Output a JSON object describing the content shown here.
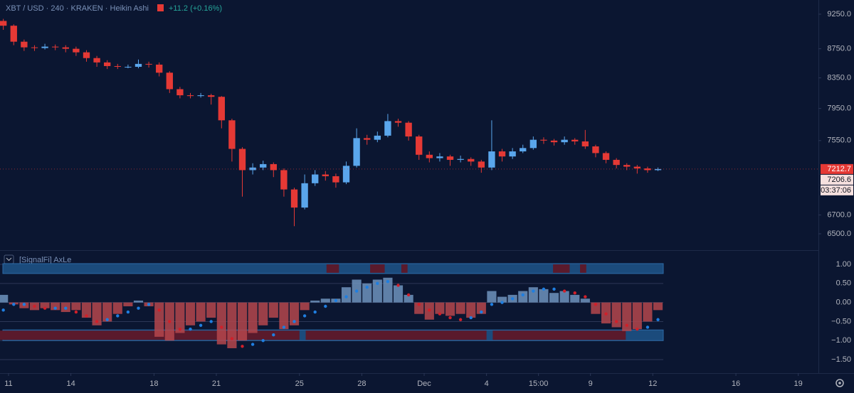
{
  "chart_data": [
    {
      "type": "candlestick",
      "title": "XBT / USD · 240 · KRAKEN · Heikin Ashi",
      "subtitle": "+11.2 (+0.16%)",
      "log_scale": true,
      "ylim": [
        6346,
        9463
      ],
      "yticks": [
        {
          "value": 9250,
          "label": "9250.0"
        },
        {
          "value": 8750,
          "label": "8750.0"
        },
        {
          "value": 8350,
          "label": "8350.0"
        },
        {
          "value": 7950,
          "label": "7950.0"
        },
        {
          "value": 7550,
          "label": "7550.0"
        },
        {
          "value": 6700,
          "label": "6700.0"
        },
        {
          "value": 6500,
          "label": "6500.0"
        }
      ],
      "up_color": "#5aa6ec",
      "down_color": "#e53935",
      "last_price": 7212.7,
      "mark_price": 7206.6,
      "countdown": "03:37:06",
      "x": [
        -0.25,
        0.25,
        0.75,
        1.25,
        1.75,
        2.25,
        2.75,
        3.25,
        3.75,
        4.25,
        4.75,
        5.25,
        5.75,
        6.25,
        6.75,
        7.25,
        7.75,
        8.25,
        8.75,
        9.25,
        9.75,
        10.25,
        10.75,
        11.25,
        11.75,
        12.25,
        12.75,
        13.25,
        13.75,
        14.25,
        14.75,
        15.25,
        15.75,
        16.25,
        16.75,
        17.25,
        17.75,
        18.25,
        18.75,
        19.25,
        19.75,
        20.25,
        20.75,
        21.25,
        21.75,
        22.25,
        22.75,
        23.25,
        23.75,
        24.25,
        24.75,
        25.25,
        25.75,
        26.25,
        26.75,
        27.25,
        27.75,
        28.25,
        28.75,
        29.25,
        29.75,
        30.25,
        30.75,
        31.25
      ],
      "open": [
        9150,
        9080,
        8850,
        8770,
        8760,
        8780,
        8770,
        8750,
        8700,
        8620,
        8560,
        8510,
        8500,
        8500,
        8540,
        8530,
        8420,
        8200,
        8120,
        8110,
        8120,
        8100,
        7800,
        7450,
        7200,
        7230,
        7270,
        7200,
        6980,
        6780,
        7050,
        7150,
        7130,
        7060,
        7250,
        7580,
        7560,
        7610,
        7790,
        7770,
        7600,
        7380,
        7340,
        7360,
        7320,
        7330,
        7300,
        7230,
        7420,
        7360,
        7420,
        7460,
        7560,
        7550,
        7530,
        7560,
        7540,
        7480,
        7400,
        7320,
        7260,
        7240,
        7220,
        7200
      ],
      "high": [
        9180,
        9100,
        8880,
        8800,
        8820,
        8810,
        8800,
        8780,
        8730,
        8650,
        8590,
        8540,
        8530,
        8600,
        8570,
        8560,
        8440,
        8230,
        8150,
        8150,
        8140,
        8110,
        7820,
        7470,
        7280,
        7310,
        7290,
        7220,
        7000,
        7150,
        7200,
        7190,
        7160,
        7300,
        7700,
        7620,
        7660,
        7880,
        7820,
        7790,
        7620,
        7420,
        7400,
        7380,
        7370,
        7350,
        7320,
        7800,
        7450,
        7460,
        7500,
        7600,
        7590,
        7570,
        7600,
        7580,
        7680,
        7500,
        7420,
        7340,
        7280,
        7260,
        7240,
        7230
      ],
      "low": [
        9020,
        8800,
        8720,
        8720,
        8740,
        8730,
        8700,
        8650,
        8570,
        8500,
        8470,
        8470,
        8480,
        8480,
        8490,
        8370,
        8150,
        8080,
        8080,
        8090,
        8000,
        7700,
        7300,
        6900,
        7150,
        7200,
        7120,
        6900,
        6580,
        6760,
        7020,
        7080,
        7000,
        7040,
        7230,
        7500,
        7530,
        7590,
        7720,
        7550,
        7320,
        7290,
        7300,
        7250,
        7290,
        7250,
        7170,
        7200,
        7300,
        7330,
        7400,
        7440,
        7510,
        7490,
        7500,
        7500,
        7450,
        7350,
        7280,
        7220,
        7200,
        7160,
        7170,
        7190
      ],
      "close": [
        9080,
        8850,
        8770,
        8760,
        8780,
        8770,
        8750,
        8700,
        8620,
        8560,
        8510,
        8500,
        8500,
        8540,
        8530,
        8420,
        8200,
        8120,
        8110,
        8120,
        8100,
        7800,
        7450,
        7200,
        7230,
        7270,
        7200,
        6980,
        6780,
        7050,
        7150,
        7130,
        7060,
        7250,
        7580,
        7560,
        7610,
        7790,
        7770,
        7600,
        7380,
        7340,
        7360,
        7320,
        7330,
        7300,
        7230,
        7420,
        7360,
        7420,
        7460,
        7560,
        7550,
        7530,
        7560,
        7540,
        7480,
        7400,
        7320,
        7260,
        7240,
        7220,
        7200,
        7212.7
      ]
    },
    {
      "type": "indicator",
      "title": "[SignalFi] AxLe",
      "ylim": [
        -1.76,
        1.28
      ],
      "yticks": [
        {
          "value": 1,
          "label": "1.00"
        },
        {
          "value": 0.5,
          "label": "0.50"
        },
        {
          "value": 0,
          "label": "0.00"
        },
        {
          "value": -0.5,
          "label": "−0.50"
        },
        {
          "value": -1,
          "label": "−1.00"
        },
        {
          "value": -1.5,
          "label": "−1.50"
        }
      ],
      "xlim": [
        -0.41,
        38.97
      ],
      "xticks": [
        {
          "value": 0,
          "label": "11"
        },
        {
          "value": 3,
          "label": "14"
        },
        {
          "value": 7,
          "label": "18"
        },
        {
          "value": 10,
          "label": "21"
        },
        {
          "value": 14,
          "label": "25"
        },
        {
          "value": 17,
          "label": "28"
        },
        {
          "value": 20,
          "label": "Dec"
        },
        {
          "value": 23,
          "label": "4"
        },
        {
          "value": 25.5,
          "label": "15:00"
        },
        {
          "value": 28,
          "label": "9"
        },
        {
          "value": 31,
          "label": "12"
        },
        {
          "value": 35,
          "label": "16"
        },
        {
          "value": 38,
          "label": "19"
        }
      ],
      "histogram": [
        0.2,
        -0.05,
        -0.15,
        -0.2,
        -0.15,
        -0.2,
        -0.25,
        -0.2,
        -0.4,
        -0.6,
        -0.5,
        -0.3,
        -0.1,
        0.05,
        -0.1,
        -0.9,
        -1.0,
        -0.8,
        -0.6,
        -0.5,
        -0.4,
        -1.1,
        -1.2,
        -1.0,
        -0.8,
        -0.6,
        -0.4,
        -0.7,
        -0.6,
        -0.2,
        0.05,
        0.1,
        0.1,
        0.4,
        0.6,
        0.5,
        0.6,
        0.65,
        0.45,
        0.2,
        -0.3,
        -0.45,
        -0.3,
        -0.35,
        -0.3,
        -0.4,
        -0.3,
        0.3,
        0.15,
        0.2,
        0.3,
        0.4,
        0.35,
        0.25,
        0.3,
        0.2,
        0.1,
        -0.3,
        -0.55,
        -0.65,
        -0.75,
        -0.7,
        -0.5,
        -0.2
      ],
      "signal": [
        -0.2,
        -0.05,
        -0.05,
        -0.1,
        -0.15,
        -0.15,
        -0.15,
        -0.25,
        -0.35,
        -0.5,
        -0.45,
        -0.35,
        -0.25,
        -0.15,
        -0.05,
        -0.2,
        -0.5,
        -0.7,
        -0.7,
        -0.6,
        -0.5,
        -0.65,
        -0.95,
        -1.15,
        -1.1,
        -1.0,
        -0.85,
        -0.65,
        -0.5,
        -0.35,
        -0.25,
        -0.1,
        0.05,
        0.15,
        0.3,
        0.4,
        0.5,
        0.55,
        0.45,
        0.2,
        -0.05,
        -0.2,
        -0.3,
        -0.4,
        -0.45,
        -0.4,
        -0.25,
        -0.05,
        0.0,
        0.1,
        0.2,
        0.3,
        0.35,
        0.35,
        0.3,
        0.25,
        0.15,
        -0.05,
        -0.3,
        -0.5,
        -0.6,
        -0.7,
        -0.65,
        -0.45
      ],
      "upper_band": [
        0.76,
        1.02
      ],
      "lower_band": [
        -1.0,
        -0.72
      ],
      "upper_signal_ranges": [
        [
          15.3,
          15.9
        ],
        [
          17.4,
          18.1
        ],
        [
          18.9,
          19.2
        ],
        [
          26.2,
          27.0
        ],
        [
          27.5,
          27.8
        ]
      ],
      "lower_signal_ranges": [
        [
          -0.41,
          14.0
        ],
        [
          14.3,
          23.0
        ],
        [
          23.3,
          29.7
        ]
      ],
      "hist_up_color": "#6f93bd",
      "hist_down_color": "#b5474c",
      "dot_up_color": "#1f7ee0",
      "dot_down_color": "#d0202a",
      "band_color": "#1b4b7c",
      "band_signal_color": "#5a1a2c"
    }
  ]
}
